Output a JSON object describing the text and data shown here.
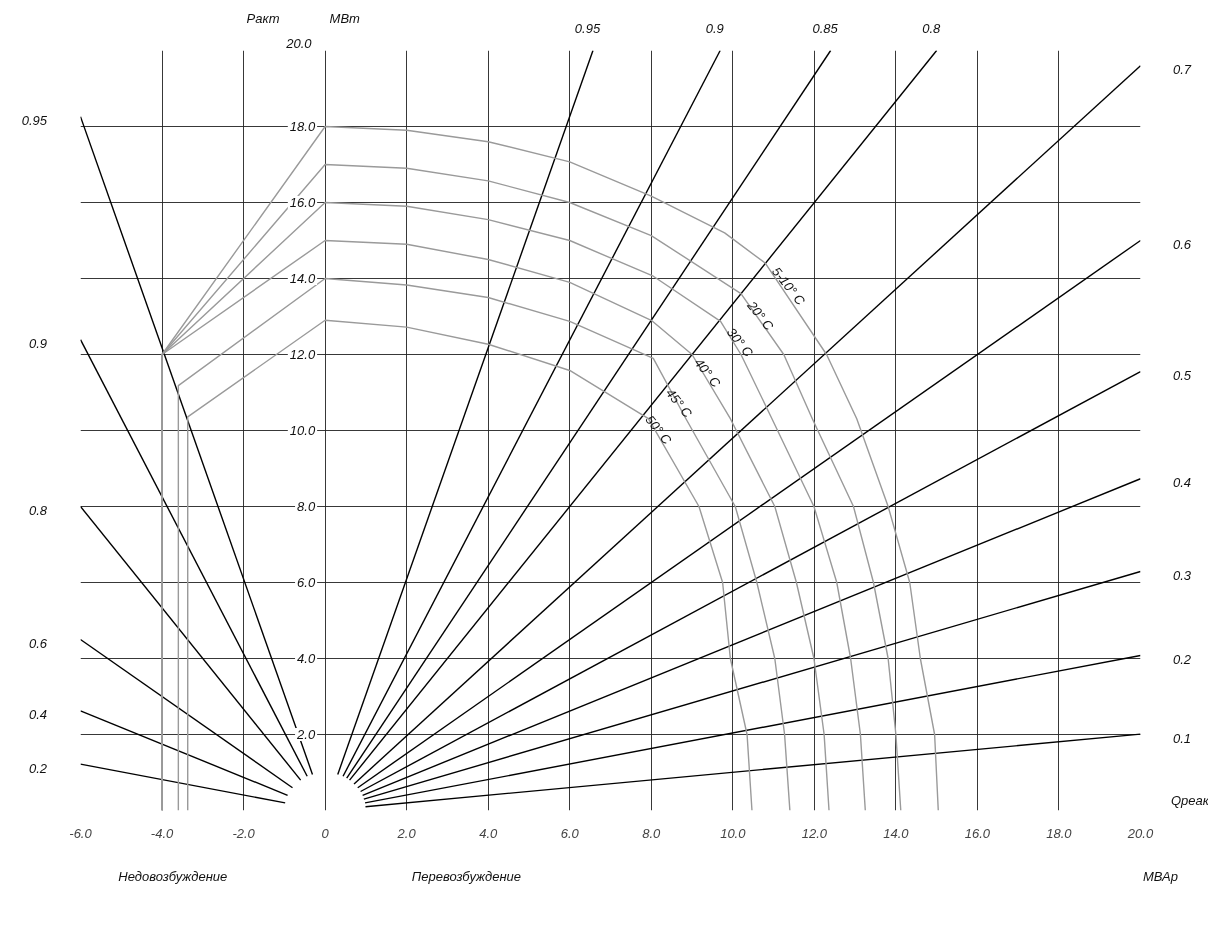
{
  "chart_data": {
    "type": "line",
    "xlabel": "Qреак",
    "ylabel": "Ракт",
    "xlim": [
      -6,
      20
    ],
    "ylim": [
      0,
      20
    ],
    "xticks": [
      {
        "value": -6,
        "label": "-6.0"
      },
      {
        "value": -4,
        "label": "-4.0"
      },
      {
        "value": -2,
        "label": "-2.0"
      },
      0,
      {
        "value": 2,
        "label": "2.0"
      },
      {
        "value": 4,
        "label": "4.0"
      },
      {
        "value": 6,
        "label": "6.0"
      },
      {
        "value": 8,
        "label": "8.0"
      },
      {
        "value": 10,
        "label": "10.0"
      },
      {
        "value": 12,
        "label": "12.0"
      },
      {
        "value": 14,
        "label": "14.0"
      },
      {
        "value": 16,
        "label": "16.0"
      },
      {
        "value": 18,
        "label": "18.0"
      },
      {
        "value": 20,
        "label": "20.0"
      }
    ],
    "yticks": [
      {
        "value": 2,
        "label": "2.0"
      },
      {
        "value": 4,
        "label": "4.0"
      },
      {
        "value": 6,
        "label": "6.0"
      },
      {
        "value": 8,
        "label": "8.0"
      },
      {
        "value": 10,
        "label": "10.0"
      },
      {
        "value": 12,
        "label": "12.0"
      },
      {
        "value": 14,
        "label": "14.0"
      },
      {
        "value": 16,
        "label": "16.0"
      },
      {
        "value": 18,
        "label": "18.0"
      },
      {
        "value": 20,
        "label": "20.0"
      }
    ],
    "grid": true,
    "series": [
      {
        "color": "#000000",
        "x": [
          -0.31,
          -6
        ],
        "values": [
          0.95,
          18.26
        ]
      },
      {
        "color": "#000000",
        "x": [
          -0.44,
          -6
        ],
        "values": [
          0.9,
          12.39
        ]
      },
      {
        "color": "#000000",
        "x": [
          -0.6,
          -6
        ],
        "values": [
          0.8,
          8.0
        ]
      },
      {
        "color": "#000000",
        "x": [
          -0.8,
          -6
        ],
        "values": [
          0.6,
          4.5
        ]
      },
      {
        "color": "#000000",
        "x": [
          -0.92,
          -6
        ],
        "values": [
          0.4,
          2.62
        ]
      },
      {
        "color": "#000000",
        "x": [
          -0.98,
          -6
        ],
        "values": [
          0.2,
          1.22
        ]
      },
      {
        "color": "#000000",
        "x": [
          0.31,
          6.57
        ],
        "values": [
          0.95,
          20
        ]
      },
      {
        "color": "#000000",
        "x": [
          0.44,
          9.69
        ],
        "values": [
          0.9,
          20
        ]
      },
      {
        "color": "#000000",
        "x": [
          0.53,
          12.4
        ],
        "values": [
          0.85,
          20
        ]
      },
      {
        "color": "#000000",
        "x": [
          0.6,
          15.0
        ],
        "values": [
          0.8,
          20
        ]
      },
      {
        "color": "#000000",
        "x": [
          0.71,
          20
        ],
        "values": [
          0.7,
          19.6
        ]
      },
      {
        "color": "#000000",
        "x": [
          0.8,
          20
        ],
        "values": [
          0.6,
          15.0
        ]
      },
      {
        "color": "#000000",
        "x": [
          0.87,
          20
        ],
        "values": [
          0.5,
          11.55
        ]
      },
      {
        "color": "#000000",
        "x": [
          0.92,
          20
        ],
        "values": [
          0.4,
          8.73
        ]
      },
      {
        "color": "#000000",
        "x": [
          0.95,
          20
        ],
        "values": [
          0.3,
          6.29
        ]
      },
      {
        "color": "#000000",
        "x": [
          0.98,
          20
        ],
        "values": [
          0.2,
          4.08
        ]
      },
      {
        "color": "#000000",
        "x": [
          0.99,
          20
        ],
        "values": [
          0.1,
          2.01
        ]
      },
      {
        "color": "#9a9a9a",
        "x": [
          -4,
          -4,
          0,
          2,
          4,
          6,
          8,
          9.8,
          10.8,
          12.3,
          13.04,
          13.81,
          14.34,
          14.6,
          14.95,
          15.04
        ],
        "values": [
          0,
          12,
          18,
          17.9,
          17.6,
          17.07,
          16.17,
          15.2,
          14.4,
          12,
          10.31,
          8,
          6,
          4,
          2,
          0
        ]
      },
      {
        "color": "#9a9a9a",
        "x": [
          -4,
          -4,
          0,
          2,
          4,
          6,
          8,
          10.2,
          11.25,
          11.95,
          12.96,
          13.45,
          13.81,
          14.0,
          14.12
        ],
        "values": [
          0,
          12,
          17,
          16.9,
          16.57,
          16,
          15.13,
          13.6,
          12,
          10.31,
          8,
          6,
          4,
          2,
          0
        ]
      },
      {
        "color": "#9a9a9a",
        "x": [
          -4,
          -4,
          0,
          2,
          4,
          6,
          8.05,
          9.7,
          10.2,
          10.96,
          11.99,
          12.55,
          12.89,
          13.13,
          13.25
        ],
        "values": [
          0,
          12,
          16,
          15.9,
          15.55,
          15,
          14.06,
          12.87,
          12,
          10.31,
          8,
          6,
          4,
          2,
          0
        ]
      },
      {
        "color": "#9a9a9a",
        "x": [
          -4,
          -4,
          0,
          2,
          4,
          6,
          8,
          9,
          9.94,
          11.03,
          11.56,
          11.99,
          12.24,
          12.36
        ],
        "values": [
          0,
          12,
          15,
          14.9,
          14.5,
          13.9,
          12.9,
          12,
          10.31,
          8,
          6,
          4,
          2,
          0
        ]
      },
      {
        "color": "#9a9a9a",
        "x": [
          -3.6,
          -3.6,
          0,
          2,
          4,
          6,
          8.05,
          8.85,
          10.06,
          10.59,
          11.03,
          11.27,
          11.4
        ],
        "values": [
          0,
          11.18,
          14,
          13.83,
          13.5,
          12.87,
          11.9,
          10.31,
          8,
          6,
          4,
          2,
          0
        ]
      },
      {
        "color": "#9a9a9a",
        "x": [
          -3.37,
          -3.37,
          0,
          2,
          4,
          6,
          7.93,
          9.17,
          9.75,
          9.94,
          10.35,
          10.47
        ],
        "values": [
          0,
          10.36,
          12.9,
          12.72,
          12.27,
          11.58,
          10.31,
          8,
          6,
          4,
          2,
          0
        ]
      }
    ],
    "annotations": [
      "МВт",
      "Недовозбуждение",
      "Перевозбуждение",
      "МВАр",
      {
        "text": "0.95",
        "x": -6,
        "y": 18.26
      },
      {
        "text": "0.9",
        "x": -6,
        "y": 12.39
      },
      {
        "text": "0.8",
        "x": -6,
        "y": 8.0
      },
      {
        "text": "0.6",
        "x": -6,
        "y": 4.5
      },
      {
        "text": "0.4",
        "x": -6,
        "y": 2.62
      },
      {
        "text": "0.2",
        "x": -6,
        "y": 1.22
      },
      {
        "text": "0.95",
        "x": 6.57,
        "y": 20
      },
      {
        "text": "0.9",
        "x": 9.69,
        "y": 20
      },
      {
        "text": "0.85",
        "x": 12.4,
        "y": 20
      },
      {
        "text": "0.8",
        "x": 15.0,
        "y": 20
      },
      {
        "text": "0.7",
        "x": 20,
        "y": 19.6
      },
      {
        "text": "0.6",
        "x": 20,
        "y": 15.0
      },
      {
        "text": "0.5",
        "x": 20,
        "y": 11.55
      },
      {
        "text": "0.4",
        "x": 20,
        "y": 8.73
      },
      {
        "text": "0.3",
        "x": 20,
        "y": 6.29
      },
      {
        "text": "0.2",
        "x": 20,
        "y": 4.08
      },
      {
        "text": "0.1",
        "x": 20,
        "y": 2.01
      },
      {
        "text": "5-10° C",
        "x": 10.9,
        "y": 14.3
      },
      {
        "text": "20° C",
        "x": 10.3,
        "y": 13.4
      },
      {
        "text": "30° C",
        "x": 9.8,
        "y": 12.7
      },
      {
        "text": "40° C",
        "x": 9.0,
        "y": 11.9
      },
      {
        "text": "45° C",
        "x": 8.3,
        "y": 11.1
      },
      {
        "text": "50° C",
        "x": 7.8,
        "y": 10.4
      }
    ]
  }
}
